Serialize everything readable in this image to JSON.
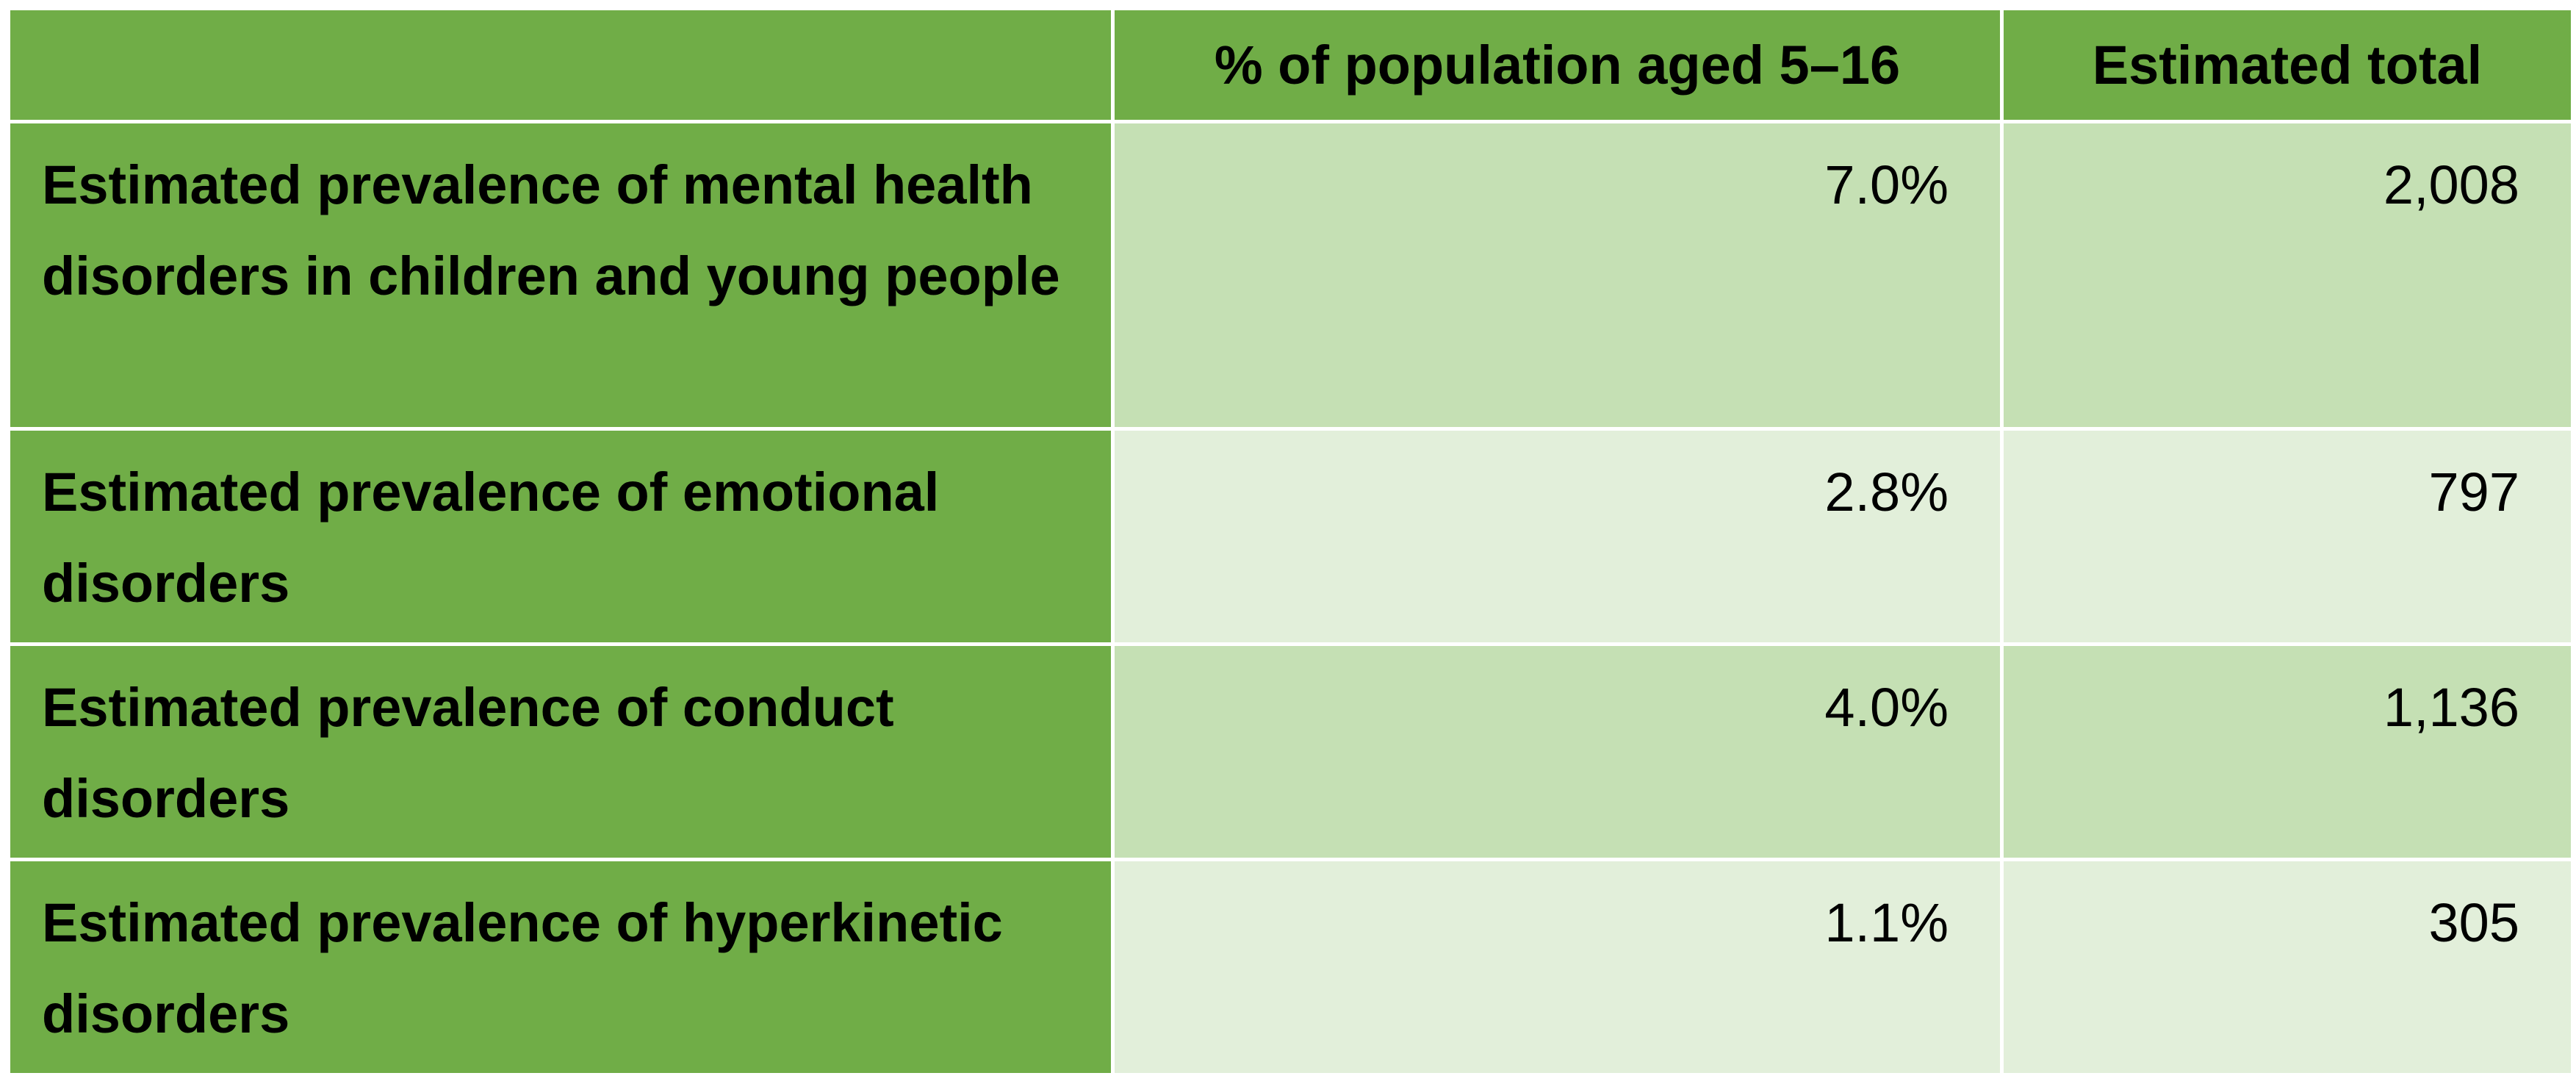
{
  "table": {
    "headers": [
      "",
      "% of population aged 5–16",
      "Estimated total"
    ],
    "rows": [
      {
        "label": "Estimated prevalence of mental health disorders in children and young people",
        "percent": "7.0%",
        "total": "2,008"
      },
      {
        "label": "Estimated prevalence of emotional disorders",
        "percent": "2.8%",
        "total": "797"
      },
      {
        "label": "Estimated prevalence of conduct disorders",
        "percent": "4.0%",
        "total": "1,136"
      },
      {
        "label": "Estimated prevalence of hyperkinetic disorders",
        "percent": "1.1%",
        "total": "305"
      }
    ]
  },
  "colors": {
    "header_green": "#70ad47",
    "row_band_dark": "#c5e0b4",
    "row_band_light": "#e2efda",
    "border": "#ffffff"
  }
}
